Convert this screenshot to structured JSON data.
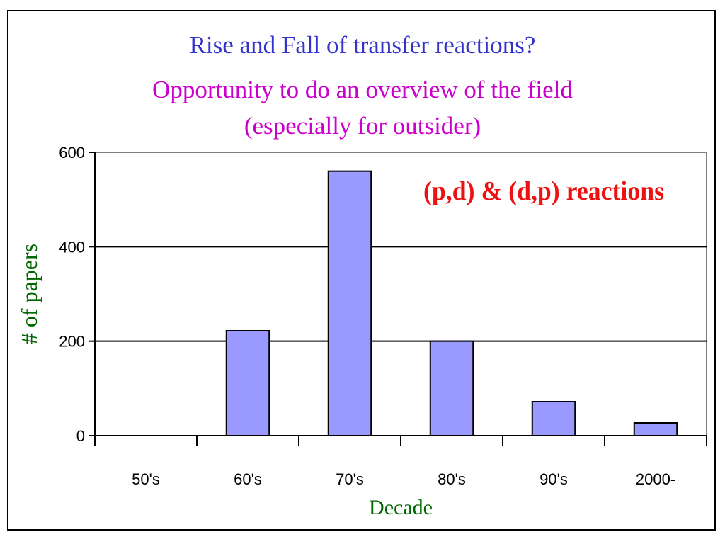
{
  "chart_data": {
    "type": "bar",
    "title": "Rise and Fall of transfer reactions?",
    "subtitle": [
      "Opportunity to do an overview of the field",
      "(especially for outsider)"
    ],
    "annotation": "(p,d) & (d,p) reactions",
    "xlabel": "Decade",
    "ylabel": "# of papers",
    "categories": [
      "50's",
      "60's",
      "70's",
      "80's",
      "90's",
      "2000-"
    ],
    "values": [
      0,
      222,
      560,
      200,
      72,
      27
    ],
    "ylim": [
      0,
      600
    ],
    "yticks": [
      0,
      200,
      400,
      600
    ],
    "grid": true,
    "bar_color": "#9999ff",
    "annotation_color": "#ee1111",
    "title_color": "#3333cc",
    "subtitle_color": "#cc00cc",
    "axis_label_color": "#006600"
  }
}
